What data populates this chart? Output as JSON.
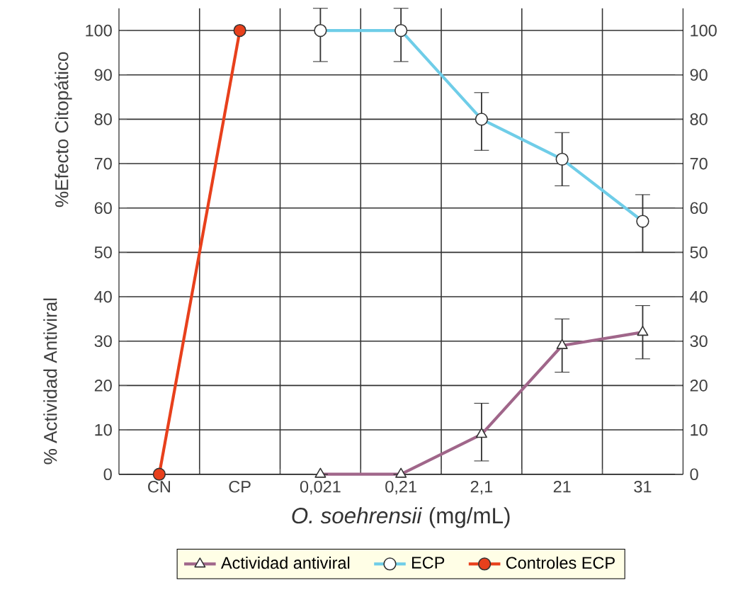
{
  "chart_data": {
    "type": "line",
    "categories": [
      "CN",
      "CP",
      "0,021",
      "0,21",
      "2,1",
      "21",
      "31"
    ],
    "xlabel": "*O. soehrensii* (mg/mL)",
    "ylabel": "%Efecto Citopático",
    "annotations": [
      "% Actividad Antiviral"
    ],
    "series": [
      {
        "name": "Actividad antiviral",
        "color": "#a0668a",
        "marker": "triangle",
        "values": [
          null,
          null,
          0,
          0,
          9,
          29,
          32
        ],
        "errors": [
          null,
          null,
          null,
          null,
          [
            3,
            16
          ],
          [
            23,
            35
          ],
          [
            26,
            38
          ]
        ]
      },
      {
        "name": "ECP",
        "color": "#6fcde8",
        "marker": "circle",
        "values": [
          null,
          null,
          100,
          100,
          80,
          71,
          57
        ],
        "errors": [
          null,
          null,
          [
            93,
            105
          ],
          [
            93,
            105
          ],
          [
            73,
            86
          ],
          [
            65,
            77
          ],
          [
            50,
            63
          ]
        ]
      },
      {
        "name": "Controles ECP",
        "color": "#e8401c",
        "marker": "circle",
        "values": [
          0,
          100,
          null,
          null,
          null,
          null,
          null
        ]
      }
    ],
    "ylim": [
      0,
      105
    ],
    "yticks": [
      0,
      10,
      20,
      30,
      40,
      50,
      60,
      70,
      80,
      90,
      100
    ],
    "y2lim": [
      0,
      105
    ],
    "y2ticks": [
      0,
      10,
      20,
      30,
      40,
      50,
      60,
      70,
      80,
      90,
      100
    ],
    "grid": true,
    "legend": "bottom",
    "line_style": "solid"
  }
}
